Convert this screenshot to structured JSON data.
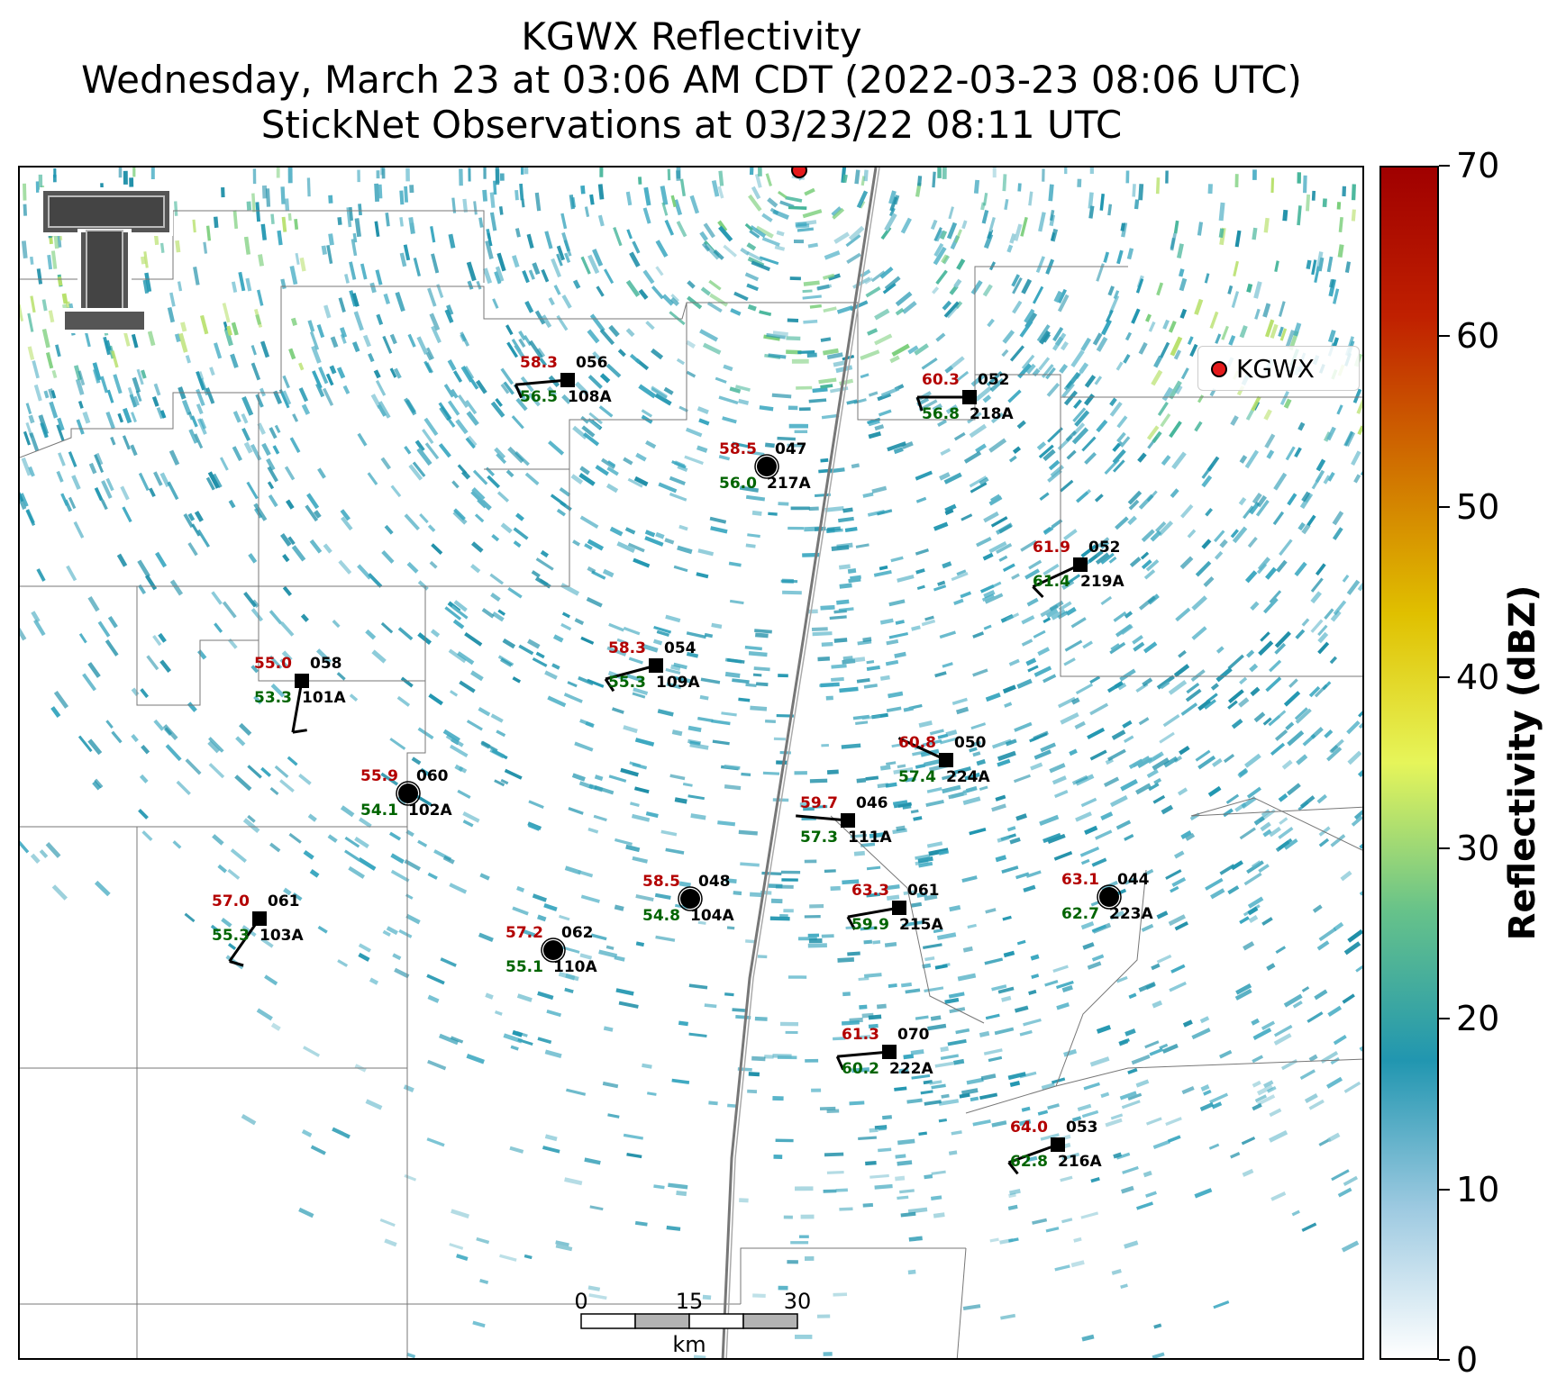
{
  "title": {
    "line1": "KGWX Reflectivity",
    "line2": "Wednesday, March 23 at 03:06 AM CDT (2022-03-23 08:06 UTC)",
    "line3": "StickNet Observations at 03/23/22 08:11 UTC"
  },
  "legend": {
    "label": "KGWX",
    "marker_color": "#e41a1c"
  },
  "colorbar": {
    "title": "Reflectivity (dBZ)",
    "ticks": [
      "0",
      "10",
      "20",
      "30",
      "40",
      "50",
      "60",
      "70"
    ],
    "range": [
      0,
      70
    ],
    "colors": [
      "#ffffff",
      "#9ecae1",
      "#2196b0",
      "#66c28a",
      "#e6f55a",
      "#e0c000",
      "#d07000",
      "#c02000",
      "#a00000"
    ]
  },
  "scalebar": {
    "ticks": [
      "0",
      "15",
      "30"
    ],
    "unit": "km"
  },
  "stations": [
    {
      "id": "108A",
      "temp": "58.3",
      "dew": "56.5",
      "dir": "056",
      "marker": "square",
      "wind_dir": 265,
      "barbs": 1
    },
    {
      "id": "218A",
      "temp": "60.3",
      "dew": "56.8",
      "dir": "052",
      "marker": "square",
      "wind_dir": 270,
      "barbs": 1
    },
    {
      "id": "217A",
      "temp": "58.5",
      "dew": "56.0",
      "dir": "047",
      "marker": "circle",
      "wind_dir": 0,
      "barbs": 0
    },
    {
      "id": "219A",
      "temp": "61.9",
      "dew": "61.4",
      "dir": "052",
      "marker": "square",
      "wind_dir": 245,
      "barbs": 1
    },
    {
      "id": "101A",
      "temp": "55.0",
      "dew": "53.3",
      "dir": "058",
      "marker": "square",
      "wind_dir": 190,
      "barbs": 1
    },
    {
      "id": "109A",
      "temp": "58.3",
      "dew": "55.3",
      "dir": "054",
      "marker": "square",
      "wind_dir": 255,
      "barbs": 1
    },
    {
      "id": "224A",
      "temp": "60.8",
      "dew": "57.4",
      "dir": "050",
      "marker": "square",
      "wind_dir": 295,
      "barbs": 0
    },
    {
      "id": "102A",
      "temp": "55.9",
      "dew": "54.1",
      "dir": "060",
      "marker": "circle",
      "wind_dir": 0,
      "barbs": 0
    },
    {
      "id": "111A",
      "temp": "59.7",
      "dew": "57.3",
      "dir": "046",
      "marker": "square",
      "wind_dir": 275,
      "barbs": 0
    },
    {
      "id": "103A",
      "temp": "57.0",
      "dew": "55.3",
      "dir": "061",
      "marker": "square",
      "wind_dir": 215,
      "barbs": 1
    },
    {
      "id": "110A",
      "temp": "57.2",
      "dew": "55.1",
      "dir": "062",
      "marker": "circle",
      "wind_dir": 0,
      "barbs": 0
    },
    {
      "id": "104A",
      "temp": "58.5",
      "dew": "54.8",
      "dir": "048",
      "marker": "circle",
      "wind_dir": 0,
      "barbs": 0
    },
    {
      "id": "215A",
      "temp": "63.3",
      "dew": "59.9",
      "dir": "061",
      "marker": "square",
      "wind_dir": 260,
      "barbs": 1
    },
    {
      "id": "223A",
      "temp": "63.1",
      "dew": "62.7",
      "dir": "044",
      "marker": "circle",
      "wind_dir": 0,
      "barbs": 0
    },
    {
      "id": "222A",
      "temp": "61.3",
      "dew": "60.2",
      "dir": "070",
      "marker": "square",
      "wind_dir": 265,
      "barbs": 1
    },
    {
      "id": "216A",
      "temp": "64.0",
      "dew": "62.8",
      "dir": "053",
      "marker": "square",
      "wind_dir": 250,
      "barbs": 1
    }
  ]
}
